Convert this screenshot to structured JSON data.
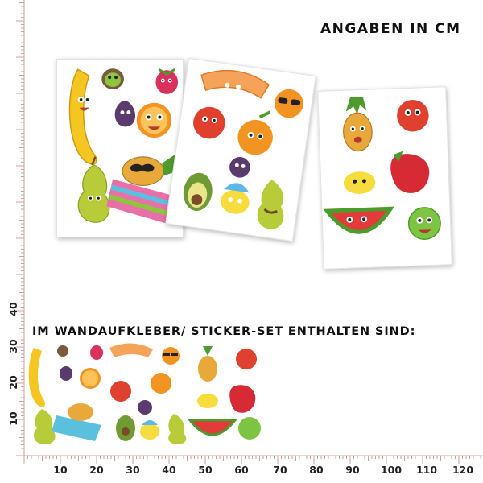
{
  "heading_top": "ANGABEN IN CM",
  "heading_set": "IM WANDAUFKLEBER/ STICKER-SET ENTHALTEN SIND:",
  "ruler_x_labels": [
    "10",
    "20",
    "30",
    "40",
    "50",
    "60",
    "70",
    "80",
    "90",
    "100",
    "110",
    "120"
  ],
  "ruler_y_labels": [
    "40",
    "30",
    "20",
    "10"
  ],
  "sheets": [
    {
      "id": "sheet-1",
      "items": [
        "banana",
        "kiwi",
        "raspberry",
        "fig",
        "orange-slice",
        "pear",
        "pineapple-on-towel"
      ]
    },
    {
      "id": "sheet-2",
      "items": [
        "melon-slice",
        "orange-with-sunglasses",
        "apple",
        "orange",
        "plum",
        "avocado",
        "lemon-with-hat",
        "pear-with-mustache"
      ]
    },
    {
      "id": "sheet-3",
      "items": [
        "pineapple",
        "apple",
        "lemon",
        "strawberry",
        "watermelon-slice",
        "lime"
      ]
    }
  ],
  "colors": {
    "banana": "#f5c521",
    "orange": "#f39422",
    "apple": "#e0412f",
    "pear": "#b8cc3a",
    "kiwi": "#7a5a3a",
    "raspberry": "#d8315b",
    "fig": "#5b3a6e",
    "melon": "#f6a35a",
    "avocado": "#6f9a34",
    "lemon": "#f6dc3c",
    "strawberry": "#d62b35",
    "watermelon": "#e33a3a",
    "lime": "#7dc443",
    "ruler": "#c9a29a",
    "sheet_shadow": "#999999"
  }
}
